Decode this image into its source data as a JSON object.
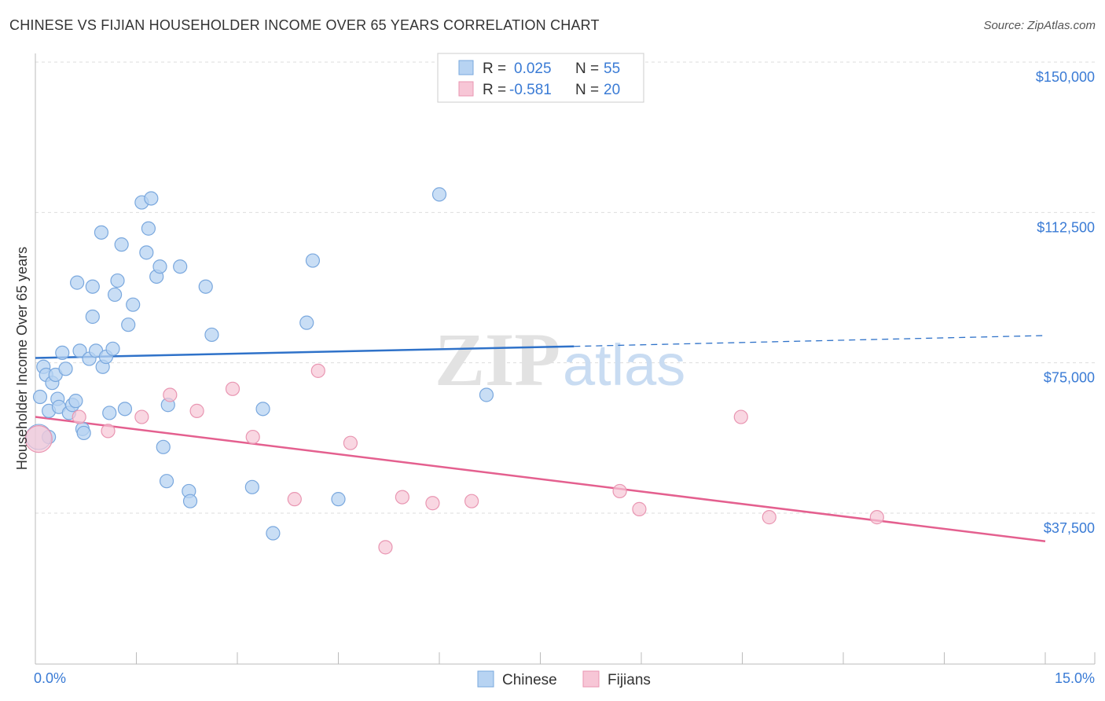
{
  "title": "CHINESE VS FIJIAN HOUSEHOLDER INCOME OVER 65 YEARS CORRELATION CHART",
  "source": "Source: ZipAtlas.com",
  "watermark": {
    "zip": "ZIP",
    "atlas": "atlas"
  },
  "colors": {
    "chinese_fill": "#b7d3f2",
    "chinese_stroke": "#7aa8de",
    "chinese_line": "#2f72c9",
    "fijian_fill": "#f7c6d6",
    "fijian_stroke": "#e996b2",
    "fijian_line": "#e4608f",
    "grid": "#dddddd",
    "label_blue": "#3a7bd5"
  },
  "legend": {
    "rows": [
      {
        "r_label": "R =",
        "r_value": "0.025",
        "n_label": "N =",
        "n_value": "55",
        "series": "Chinese"
      },
      {
        "r_label": "R =",
        "r_value": "-0.581",
        "n_label": "N =",
        "n_value": "20",
        "series": "Fijians"
      }
    ]
  },
  "bottom_legend": [
    "Chinese",
    "Fijians"
  ],
  "chart_data": {
    "type": "scatter",
    "title": "CHINESE VS FIJIAN HOUSEHOLDER INCOME OVER 65 YEARS CORRELATION CHART",
    "xlabel": "",
    "ylabel": "Householder Income Over 65 years",
    "xlim": [
      0,
      15
    ],
    "ylim": [
      0,
      155000
    ],
    "x_tick_labels": {
      "left": "0.0%",
      "right": "15.0%"
    },
    "y_ticks": [
      {
        "value": 37500,
        "label": "$37,500"
      },
      {
        "value": 75000,
        "label": "$75,000"
      },
      {
        "value": 112500,
        "label": "$112,500"
      },
      {
        "value": 150000,
        "label": "$150,000"
      }
    ],
    "series": [
      {
        "name": "Chinese",
        "trend": {
          "x0": 0,
          "y0": 76200,
          "x1": 8.0,
          "y1": 79100,
          "dashed_to_x": 15,
          "dashed_to_y": 81800
        },
        "points": [
          [
            0.07,
            66500
          ],
          [
            0.12,
            74000
          ],
          [
            0.16,
            72000
          ],
          [
            0.2,
            56500
          ],
          [
            0.2,
            63000
          ],
          [
            0.25,
            70000
          ],
          [
            0.3,
            72000
          ],
          [
            0.33,
            66000
          ],
          [
            0.35,
            64000
          ],
          [
            0.4,
            77500
          ],
          [
            0.45,
            73500
          ],
          [
            0.5,
            62500
          ],
          [
            0.55,
            64500
          ],
          [
            0.6,
            65500
          ],
          [
            0.62,
            95000
          ],
          [
            0.66,
            78000
          ],
          [
            0.7,
            58500
          ],
          [
            0.72,
            57500
          ],
          [
            0.8,
            76000
          ],
          [
            0.85,
            94000
          ],
          [
            0.85,
            86500
          ],
          [
            0.9,
            78000
          ],
          [
            0.98,
            107500
          ],
          [
            1.0,
            74000
          ],
          [
            1.05,
            76500
          ],
          [
            1.1,
            62500
          ],
          [
            1.15,
            78500
          ],
          [
            1.18,
            92000
          ],
          [
            1.22,
            95500
          ],
          [
            1.28,
            104500
          ],
          [
            1.33,
            63500
          ],
          [
            1.38,
            84500
          ],
          [
            1.45,
            89500
          ],
          [
            1.58,
            115000
          ],
          [
            1.65,
            102500
          ],
          [
            1.68,
            108500
          ],
          [
            1.72,
            116000
          ],
          [
            1.8,
            96500
          ],
          [
            1.85,
            99000
          ],
          [
            1.9,
            54000
          ],
          [
            1.95,
            45500
          ],
          [
            1.97,
            64500
          ],
          [
            2.15,
            99000
          ],
          [
            2.28,
            43000
          ],
          [
            2.3,
            40500
          ],
          [
            2.53,
            94000
          ],
          [
            2.62,
            82000
          ],
          [
            3.22,
            44000
          ],
          [
            3.38,
            63500
          ],
          [
            3.53,
            32500
          ],
          [
            4.03,
            85000
          ],
          [
            4.12,
            100500
          ],
          [
            4.5,
            41000
          ],
          [
            6.0,
            117000
          ],
          [
            6.7,
            67000
          ]
        ]
      },
      {
        "name": "Fijians",
        "trend": {
          "x0": 0,
          "y0": 61500,
          "x1": 15,
          "y1": 30500
        },
        "points": [
          [
            0.05,
            56000
          ],
          [
            0.65,
            61500
          ],
          [
            1.08,
            58000
          ],
          [
            1.58,
            61500
          ],
          [
            2.0,
            67000
          ],
          [
            2.4,
            63000
          ],
          [
            2.93,
            68500
          ],
          [
            3.23,
            56500
          ],
          [
            3.85,
            41000
          ],
          [
            4.2,
            73000
          ],
          [
            4.68,
            55000
          ],
          [
            5.2,
            29000
          ],
          [
            5.45,
            41500
          ],
          [
            5.9,
            40000
          ],
          [
            6.48,
            40500
          ],
          [
            8.68,
            43000
          ],
          [
            8.97,
            38500
          ],
          [
            10.48,
            61500
          ],
          [
            10.9,
            36500
          ],
          [
            12.5,
            36500
          ]
        ]
      }
    ]
  }
}
